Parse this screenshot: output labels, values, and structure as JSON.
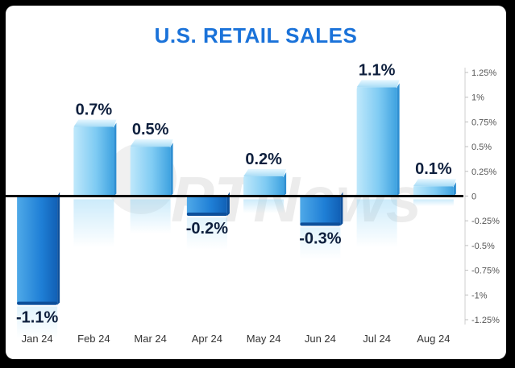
{
  "chart_data": {
    "type": "bar",
    "title": "U.S. RETAIL SALES",
    "categories": [
      "Jan 24",
      "Feb 24",
      "Mar 24",
      "Apr 24",
      "May 24",
      "Jun 24",
      "Jul 24",
      "Aug 24"
    ],
    "values": [
      -1.1,
      0.7,
      0.5,
      -0.2,
      0.2,
      -0.3,
      1.1,
      0.1
    ],
    "data_labels": [
      "-1.1%",
      "0.7%",
      "0.5%",
      "-0.2%",
      "0.2%",
      "-0.3%",
      "1.1%",
      "0.1%"
    ],
    "y_ticks": [
      1.25,
      1,
      0.75,
      0.5,
      0.25,
      0,
      -0.25,
      -0.5,
      -0.75,
      -1,
      -1.25
    ],
    "y_tick_labels": [
      "1.25%",
      "1%",
      "0.75%",
      "0.5%",
      "0.25%",
      "0",
      "-0.25%",
      "-0.5%",
      "-0.75%",
      "-1%",
      "-1.25%"
    ],
    "ylim": [
      -1.25,
      1.25
    ],
    "yaxis_side": "right",
    "grid": false,
    "xlabel": "",
    "ylabel": "",
    "watermark": "PTNews",
    "colors": {
      "title": "#1a72d9",
      "bar_light": "#8fd3f5",
      "bar_dark": "#1565c0",
      "zero_line": "#000000"
    }
  }
}
